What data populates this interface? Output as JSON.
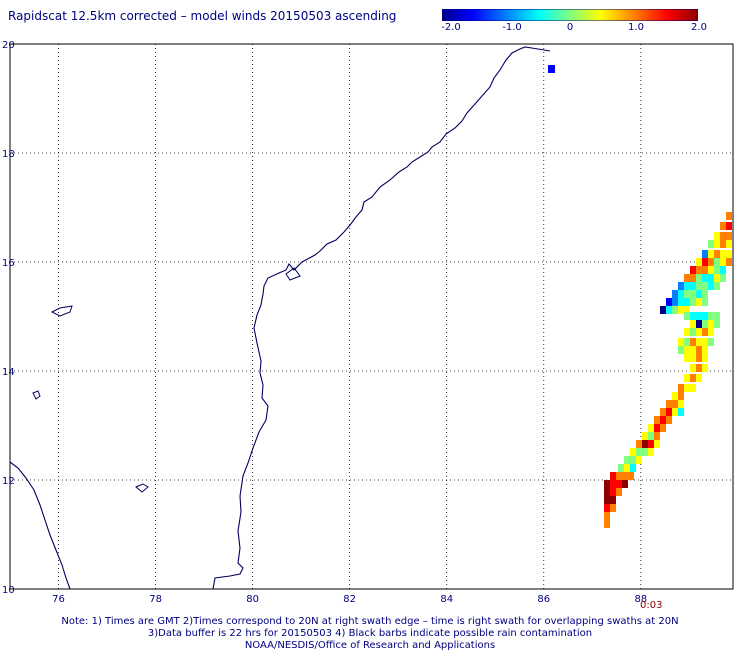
{
  "title": "Rapidscat 12.5km corrected – model winds 20150503 ascending",
  "colorbar": {
    "labels": [
      "-2.0",
      "-1.0",
      "0",
      "1.0",
      "2.0"
    ],
    "values": [
      -2.0,
      -1.0,
      0,
      1.0,
      2.0
    ],
    "min": -2.0,
    "max": 2.0,
    "colors": [
      "#00008b",
      "#0000ff",
      "#0080ff",
      "#00ffff",
      "#80ff80",
      "#ffff00",
      "#ff8000",
      "#ff0000",
      "#8b0000"
    ]
  },
  "map": {
    "lon_range": [
      75.0,
      89.9
    ],
    "lat_range": [
      10.0,
      20.0
    ],
    "lon_labels": [
      "76",
      "78",
      "80",
      "82",
      "84",
      "86",
      "88"
    ],
    "lon_ticks": [
      76,
      78,
      80,
      82,
      84,
      86,
      88
    ],
    "lat_labels": [
      "10",
      "12",
      "14",
      "16",
      "18",
      "20"
    ],
    "lat_ticks": [
      10,
      12,
      14,
      16,
      18,
      20
    ],
    "grid": true,
    "coastline_color": "#000060"
  },
  "timestamp": "0:03",
  "notes": {
    "line1": "Note: 1) Times are GMT 2)Times correspond to 20N at right swath edge – time is right swath for overlapping swaths at 20N",
    "line2": "3)Data buffer is 22 hrs for 20150503 4) Black barbs indicate possible rain contamination",
    "line3": "NOAA/NESDIS/Office of Research and Applications"
  }
}
